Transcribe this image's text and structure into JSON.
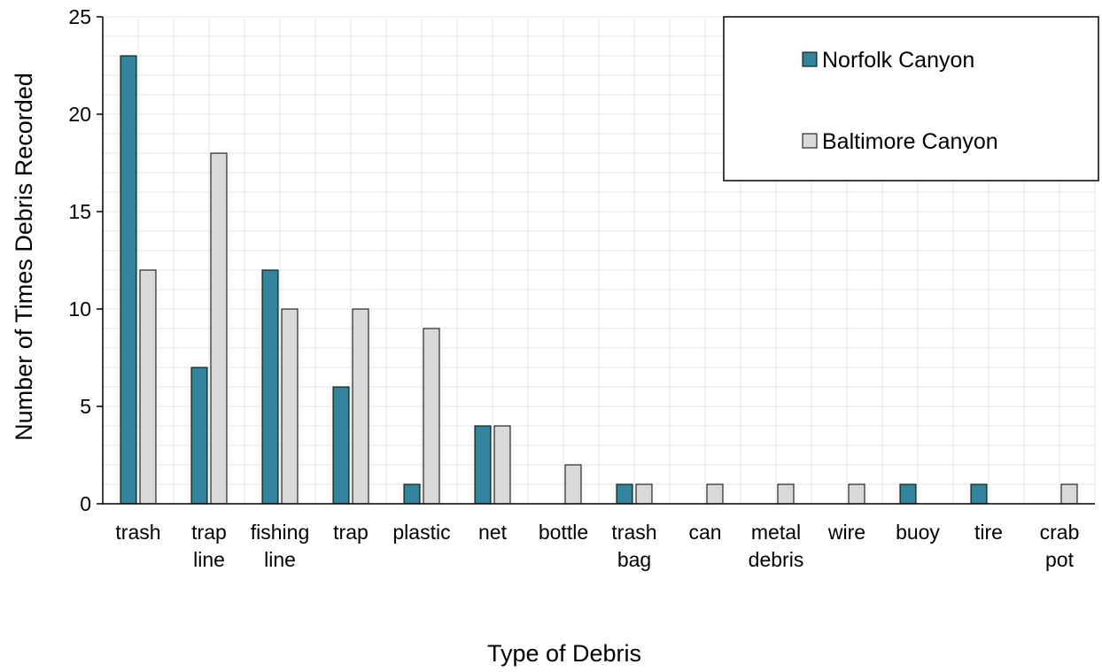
{
  "chart_data": {
    "type": "bar",
    "xlabel": "Type of Debris",
    "ylabel": "Number of Times Debris Recorded",
    "ylim": [
      0,
      25
    ],
    "yticks": [
      0,
      5,
      10,
      15,
      20,
      25
    ],
    "grid": true,
    "legend_position": "top-right",
    "categories": [
      [
        "trash"
      ],
      [
        "trap",
        "line"
      ],
      [
        "fishing",
        "line"
      ],
      [
        "trap"
      ],
      [
        "plastic"
      ],
      [
        "net"
      ],
      [
        "bottle"
      ],
      [
        "trash",
        "bag"
      ],
      [
        "can"
      ],
      [
        "metal",
        "debris"
      ],
      [
        "wire"
      ],
      [
        "buoy"
      ],
      [
        "tire"
      ],
      [
        "crab",
        "pot"
      ]
    ],
    "series": [
      {
        "name": "Norfolk Canyon",
        "color": "#31859c",
        "values": [
          23,
          7,
          12,
          6,
          1,
          4,
          0,
          1,
          0,
          0,
          0,
          1,
          1,
          0
        ]
      },
      {
        "name": "Baltimore Canyon",
        "color": "#d9d9d9",
        "values": [
          12,
          18,
          10,
          10,
          9,
          4,
          2,
          1,
          1,
          1,
          1,
          0,
          0,
          1
        ]
      }
    ]
  }
}
